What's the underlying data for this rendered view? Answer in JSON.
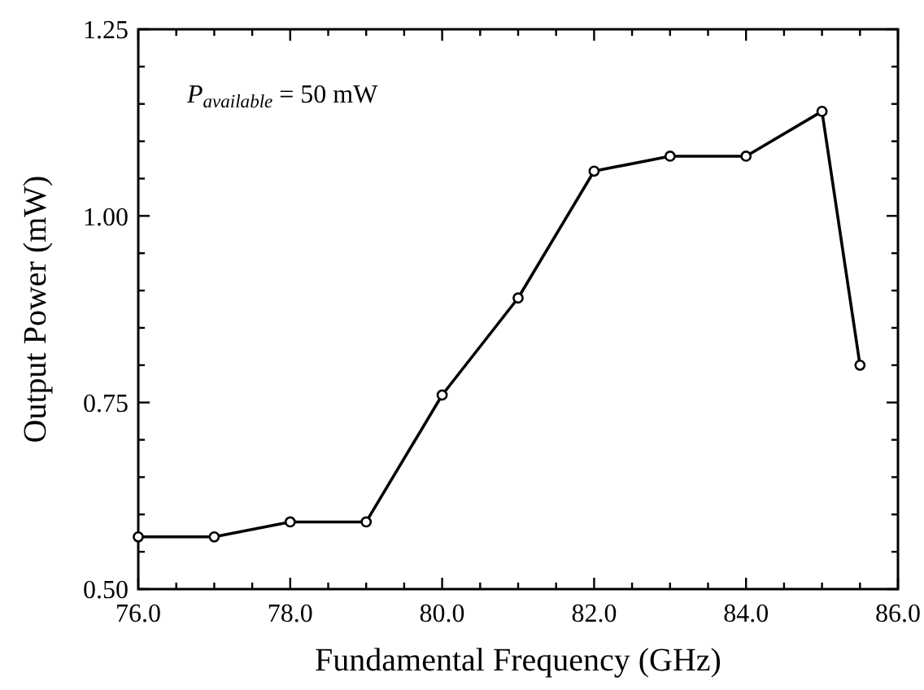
{
  "chart_data": {
    "type": "line",
    "xlabel": "Fundamental Frequency (GHz)",
    "ylabel": "Output Power (mW)",
    "annotations": [
      "P$_{available}$ = 50 mW"
    ],
    "x": [
      76,
      77,
      78,
      79,
      80,
      81,
      82,
      83,
      84,
      85,
      85.5
    ],
    "series": [
      {
        "color": "#000000",
        "values": [
          0.57,
          0.57,
          0.59,
          0.59,
          0.76,
          0.89,
          1.06,
          1.08,
          1.08,
          1.14,
          0.8
        ]
      }
    ],
    "marker": "circle",
    "line_style": "solid",
    "xlim": [
      76,
      86
    ],
    "xticks": [
      {
        "value": 76,
        "label": "76.0"
      },
      {
        "value": 76.5,
        "label": null
      },
      {
        "value": 77,
        "label": null
      },
      {
        "value": 77.5,
        "label": null
      },
      {
        "value": 78,
        "label": "78.0"
      },
      {
        "value": 78.5,
        "label": null
      },
      {
        "value": 79,
        "label": null
      },
      {
        "value": 79.5,
        "label": null
      },
      {
        "value": 80,
        "label": "80.0"
      },
      {
        "value": 80.5,
        "label": null
      },
      {
        "value": 81,
        "label": null
      },
      {
        "value": 81.5,
        "label": null
      },
      {
        "value": 82,
        "label": "82.0"
      },
      {
        "value": 82.5,
        "label": null
      },
      {
        "value": 83,
        "label": null
      },
      {
        "value": 83.5,
        "label": null
      },
      {
        "value": 84,
        "label": "84.0"
      },
      {
        "value": 84.5,
        "label": null
      },
      {
        "value": 85,
        "label": null
      },
      {
        "value": 85.5,
        "label": null
      },
      {
        "value": 86,
        "label": "86.0"
      }
    ],
    "ylim": [
      0.5,
      1.25
    ],
    "yticks": [
      {
        "value": 0.5,
        "label": "0.50"
      },
      {
        "value": 0.55,
        "label": null
      },
      {
        "value": 0.6,
        "label": null
      },
      {
        "value": 0.65,
        "label": null
      },
      {
        "value": 0.7,
        "label": null
      },
      {
        "value": 0.75,
        "label": "0.75"
      },
      {
        "value": 0.8,
        "label": null
      },
      {
        "value": 0.85,
        "label": null
      },
      {
        "value": 0.9,
        "label": null
      },
      {
        "value": 0.95,
        "label": null
      },
      {
        "value": 1.0,
        "label": "1.00"
      },
      {
        "value": 1.05,
        "label": null
      },
      {
        "value": 1.1,
        "label": null
      },
      {
        "value": 1.15,
        "label": null
      },
      {
        "value": 1.2,
        "label": null
      },
      {
        "value": 1.25,
        "label": "1.25"
      }
    ]
  }
}
